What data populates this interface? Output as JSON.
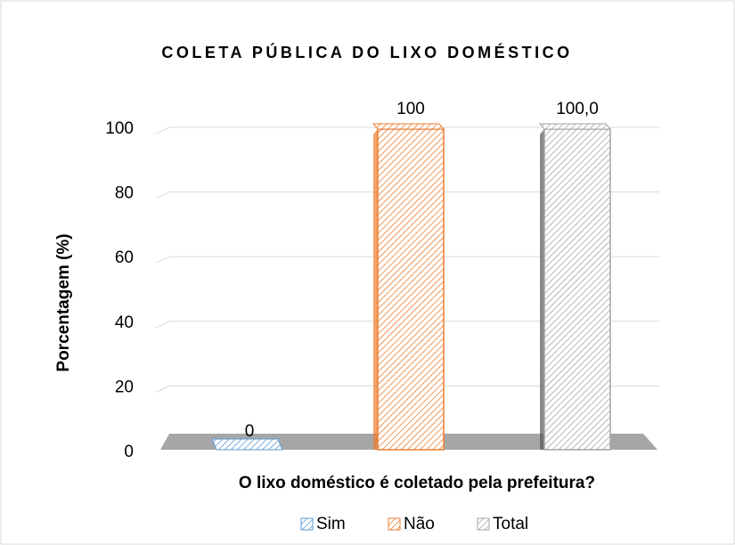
{
  "chart_data": {
    "type": "bar3d",
    "title": "COLETA PÚBLICA DO LIXO DOMÉSTICO",
    "y_label": "Porcentagem (%)",
    "x_label": "O lixo doméstico é coletado pela prefeitura?",
    "categories": [
      null
    ],
    "series": [
      {
        "name": "Sim",
        "color": "#5b9bd5",
        "values": [
          0
        ],
        "value_labels": [
          "0"
        ]
      },
      {
        "name": "Não",
        "color": "#ed7d31",
        "values": [
          100
        ],
        "value_labels": [
          "100"
        ]
      },
      {
        "name": "Total",
        "color": "#a5a5a5",
        "values": [
          100
        ],
        "value_labels": [
          "100,0"
        ]
      }
    ],
    "ylim": [
      0,
      100
    ],
    "yticks": [
      0,
      20,
      40,
      60,
      80,
      100
    ],
    "grid": true,
    "legend": "bottom"
  }
}
